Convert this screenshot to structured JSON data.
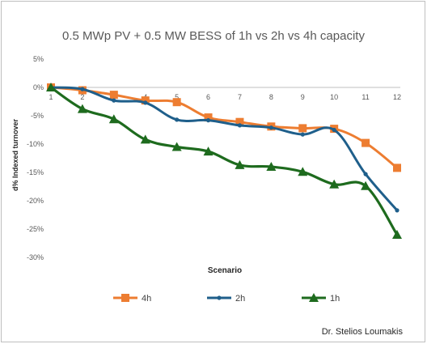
{
  "chart_data": {
    "type": "line",
    "title": "0.5 MWp PV + 0.5 MW BESS of 1h vs 2h vs 4h capacity",
    "xlabel": "Scenario",
    "ylabel": "d% Indexed turnover",
    "categories": [
      "1",
      "2",
      "3",
      "4",
      "5",
      "6",
      "7",
      "8",
      "9",
      "10",
      "11",
      "12"
    ],
    "ylim": [
      -30,
      5
    ],
    "yticks": [
      "5%",
      "0%",
      "-5%",
      "-10%",
      "-15%",
      "-20%",
      "-25%",
      "-30%"
    ],
    "grid": false,
    "legend_position": "bottom",
    "series": [
      {
        "name": "4h",
        "color": "#ED7D31",
        "marker": "square",
        "values": [
          0,
          -0.5,
          -1.3,
          -2.3,
          -2.6,
          -5.3,
          -6.1,
          -6.9,
          -7.2,
          -7.3,
          -9.8,
          -14.2
        ]
      },
      {
        "name": "2h",
        "color": "#1F5F8B",
        "marker": "circle",
        "values": [
          0,
          -0.3,
          -2.3,
          -2.7,
          -5.7,
          -5.8,
          -6.7,
          -7.1,
          -8.3,
          -7.5,
          -15.3,
          -21.7
        ]
      },
      {
        "name": "1h",
        "color": "#1E6B1E",
        "marker": "triangle",
        "values": [
          0,
          -3.8,
          -5.6,
          -9.2,
          -10.5,
          -11.3,
          -13.7,
          -14.0,
          -14.9,
          -17.1,
          -17.4,
          -26.0
        ]
      }
    ]
  },
  "footer": {
    "credit": "Dr. Stelios Loumakis"
  }
}
